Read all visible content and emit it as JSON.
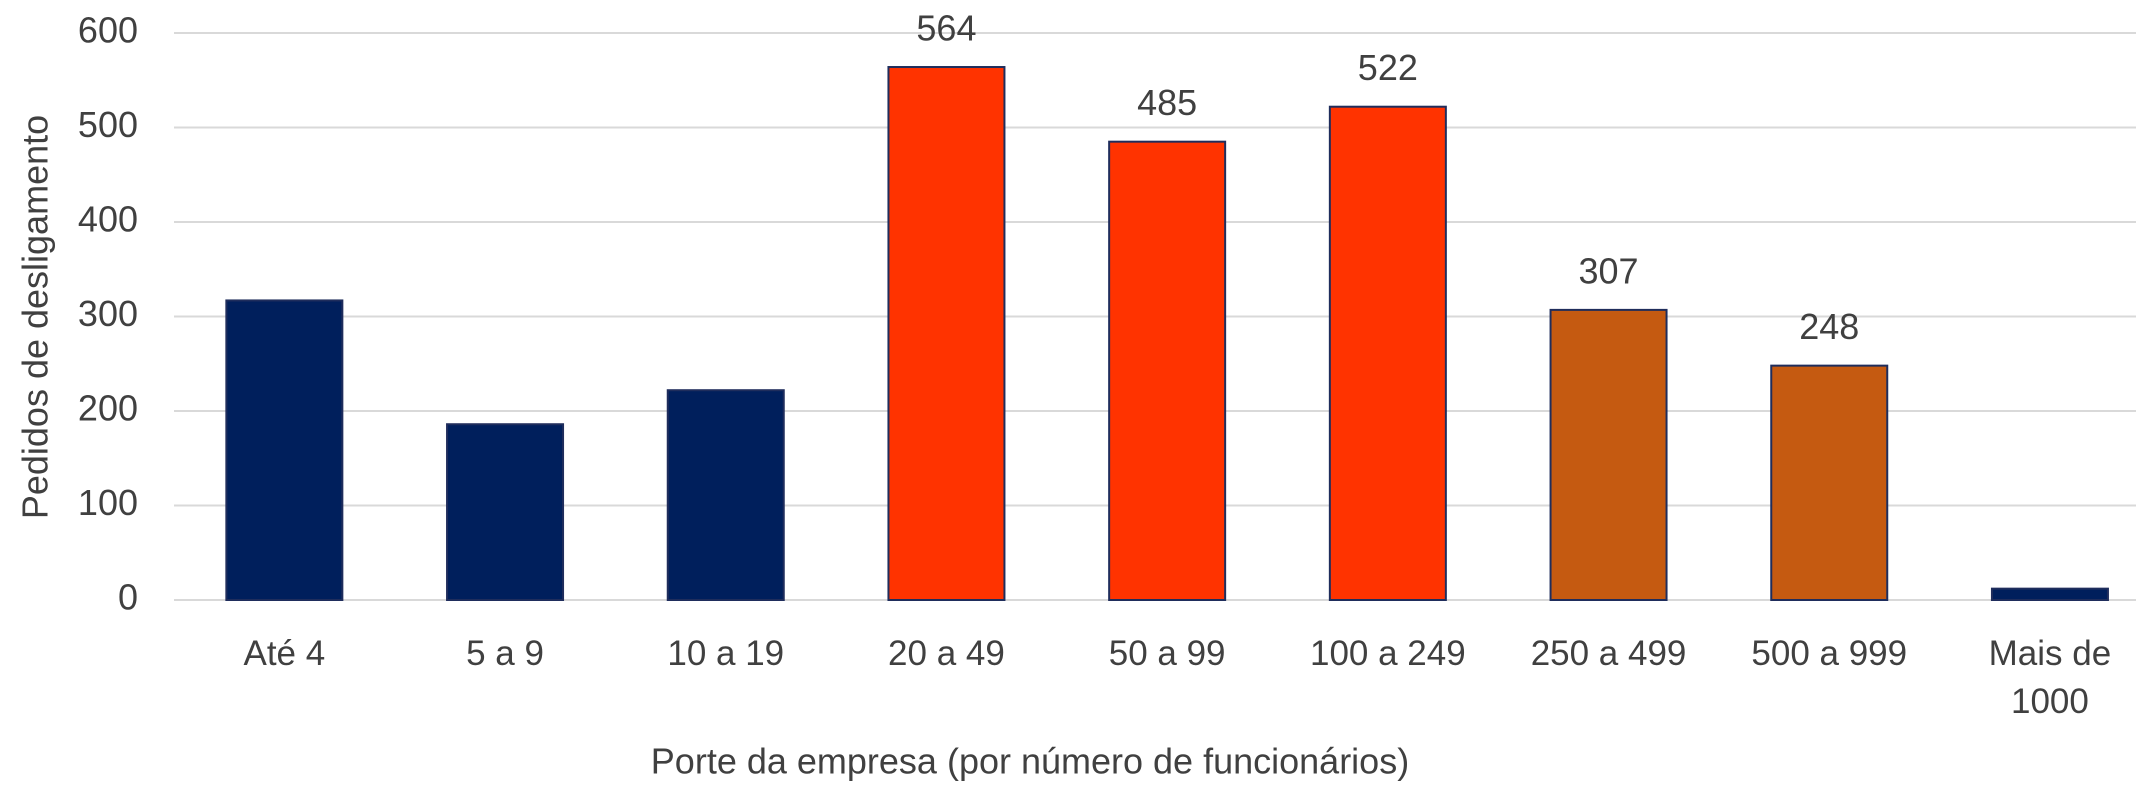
{
  "chart_data": {
    "type": "bar",
    "x_label": "Porte da empresa (por número de funcionários)",
    "y_label": "Pedidos de desligamento",
    "categories": [
      "Até 4",
      "5 a 9",
      "10 a 19",
      "20 a 49",
      "50 a 99",
      "100 a 249",
      "250 a 499",
      "500 a 999",
      "Mais de 1000"
    ],
    "values": [
      317,
      186,
      222,
      564,
      485,
      522,
      307,
      248,
      12
    ],
    "value_labels": [
      null,
      null,
      null,
      "564",
      "485",
      "522",
      "307",
      "248",
      null
    ],
    "colors": [
      "#001f5c",
      "#001f5c",
      "#001f5c",
      "#ff3300",
      "#ff3300",
      "#ff3300",
      "#c55a11",
      "#c55a11",
      "#001f5c"
    ],
    "ylim": [
      0,
      600
    ],
    "yticks": [
      0,
      100,
      200,
      300,
      400,
      500,
      600
    ],
    "grid": true
  }
}
